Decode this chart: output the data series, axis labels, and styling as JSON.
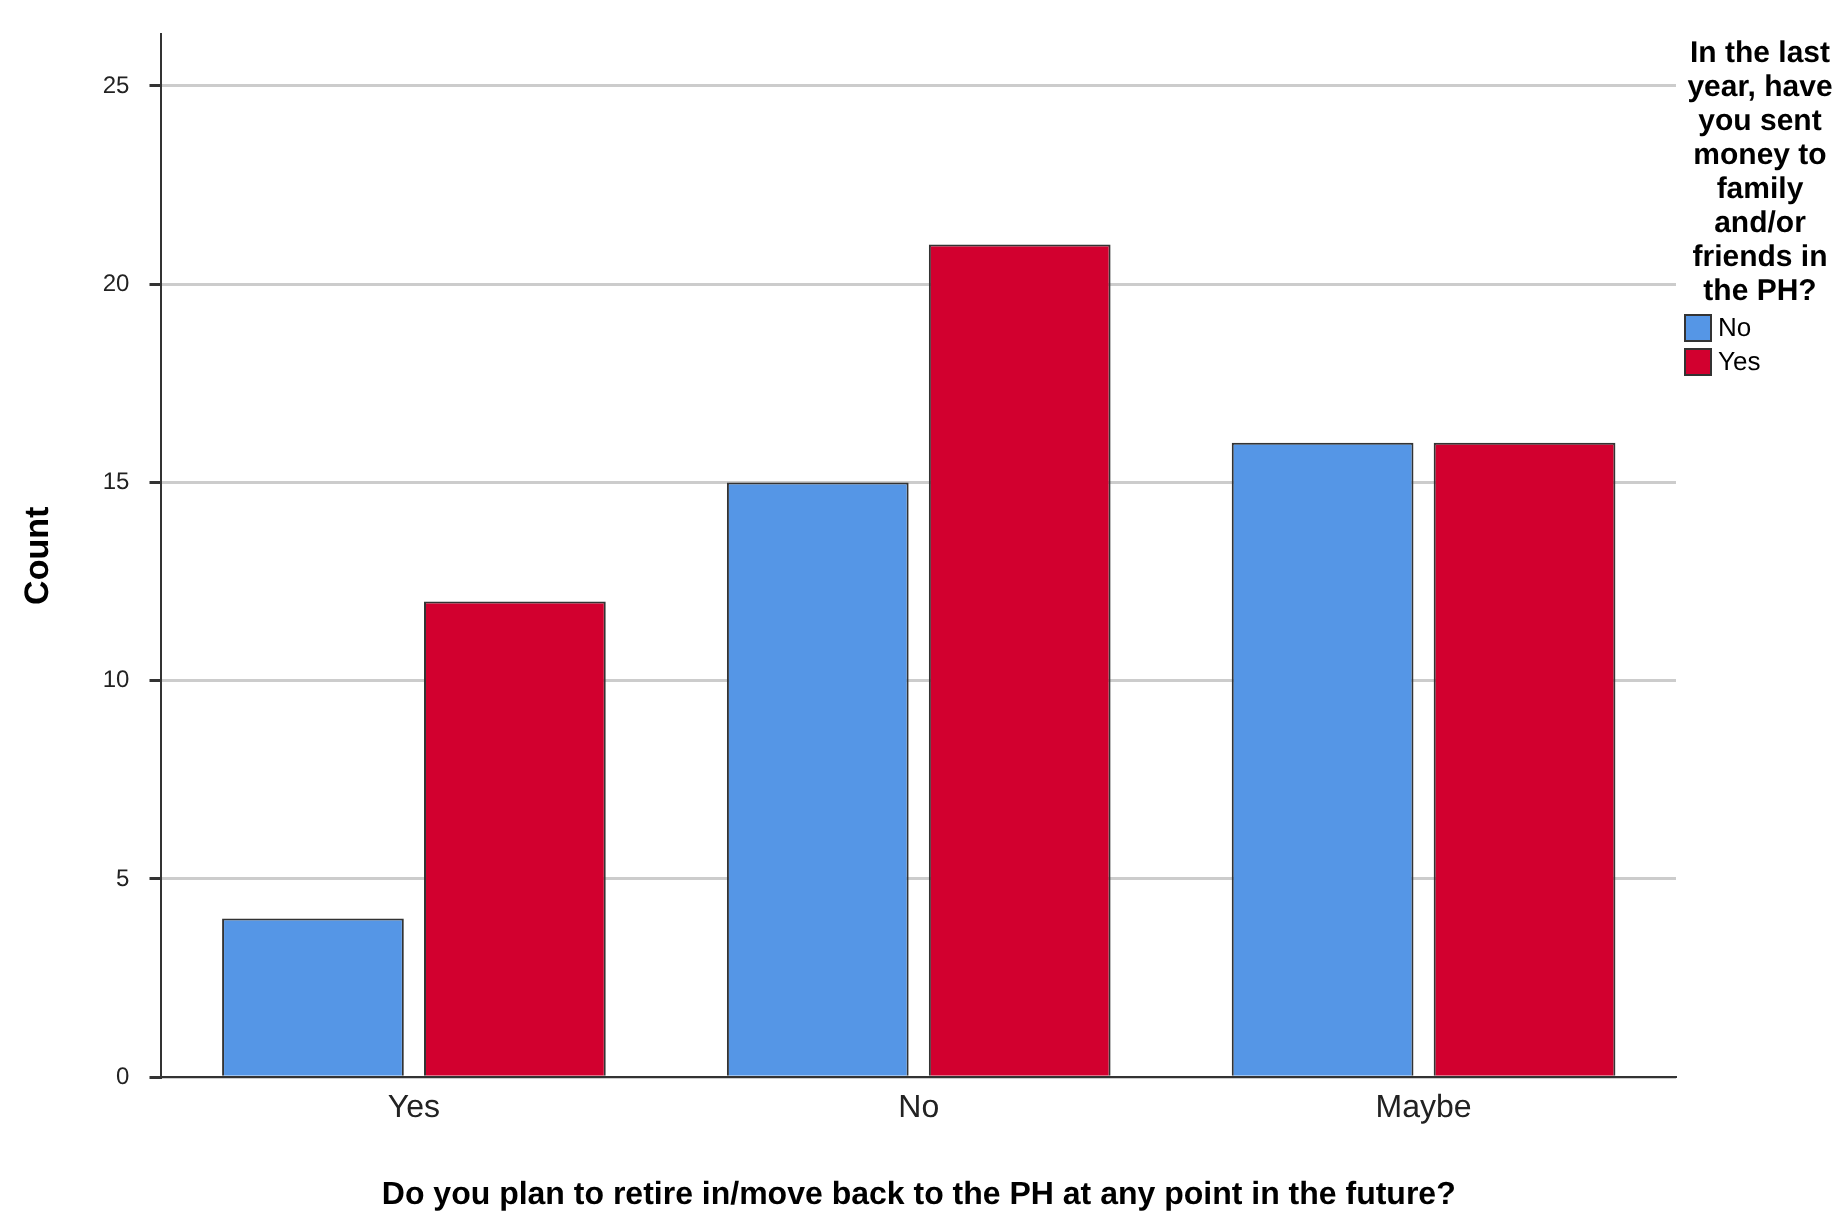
{
  "chart_data": {
    "type": "bar",
    "xlabel": "Do you plan to retire in/move back to the PH at any point in the future?",
    "ylabel": "Count",
    "legend_title": "In the last year, have you sent money to family and/or friends in the PH?",
    "categories": [
      "Yes",
      "No",
      "Maybe"
    ],
    "series": [
      {
        "name": "No",
        "color": "#5596e6",
        "values": [
          4,
          15,
          16
        ]
      },
      {
        "name": "Yes",
        "color": "#d2002f",
        "values": [
          12,
          21,
          16
        ]
      }
    ],
    "ylim": [
      0,
      26.3
    ],
    "yticks": [
      0,
      5,
      10,
      15,
      20,
      25
    ],
    "grid": "y",
    "legend": "right"
  }
}
